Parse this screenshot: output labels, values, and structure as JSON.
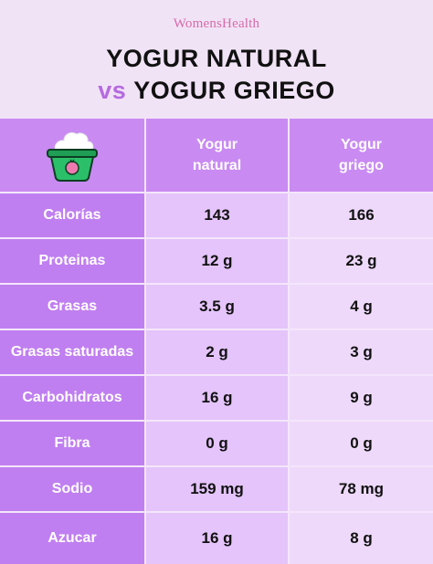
{
  "brand": "WomensHealth",
  "title": {
    "line1": "YOGUR NATURAL",
    "vs": "vs",
    "line2": "YOGUR GRIEGO"
  },
  "icon": "yogurt-cup-icon",
  "colors": {
    "background": "#f1e3f6",
    "label_column": "#c07ff0",
    "header": "#c98af2",
    "natural_column": "#e4c4fa",
    "greek_column": "#eed9fb",
    "vs_accent": "#b56be0",
    "brand": "#d86aa9"
  },
  "table": {
    "headers": [
      {
        "line1": "Yogur",
        "line2": "natural"
      },
      {
        "line1": "Yogur",
        "line2": "griego"
      }
    ],
    "rows": [
      {
        "label": "Calorías",
        "natural": "143",
        "griego": "166"
      },
      {
        "label": "Proteinas",
        "natural": "12 g",
        "griego": "23 g"
      },
      {
        "label": "Grasas",
        "natural": "3.5 g",
        "griego": "4 g"
      },
      {
        "label": "Grasas saturadas",
        "natural": "2 g",
        "griego": "3 g"
      },
      {
        "label": "Carbohidratos",
        "natural": "16 g",
        "griego": "9 g"
      },
      {
        "label": "Fibra",
        "natural": "0 g",
        "griego": "0 g"
      },
      {
        "label": "Sodio",
        "natural": "159 mg",
        "griego": "78 mg"
      },
      {
        "label": "Azucar",
        "natural": "16 g",
        "griego": "8 g"
      }
    ]
  }
}
